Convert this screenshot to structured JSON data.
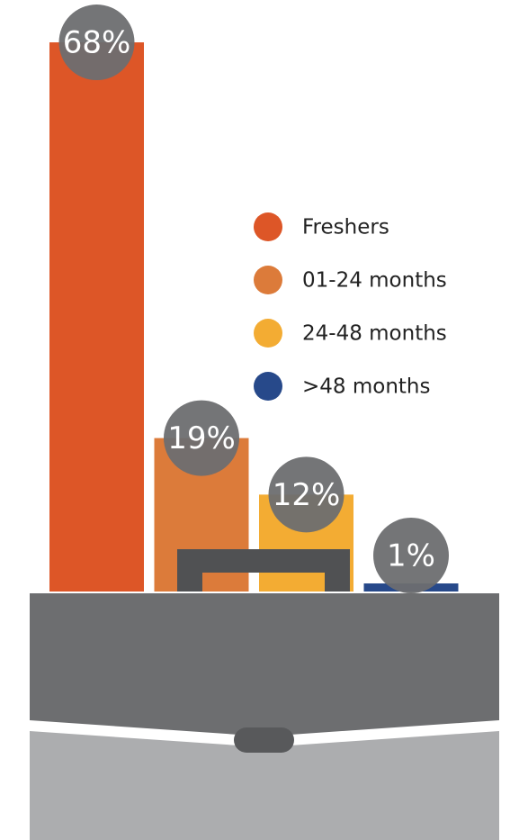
{
  "chart_data": {
    "type": "bar",
    "categories": [
      "Freshers",
      "01-24 months",
      "24-48 months",
      ">48 months"
    ],
    "values": [
      68,
      19,
      12,
      1
    ],
    "value_labels": [
      "68%",
      "19%",
      "12%",
      "1%"
    ],
    "colors": [
      "#dd5627",
      "#dc7b3a",
      "#f3ac33",
      "#27498a"
    ],
    "legend": "right"
  }
}
